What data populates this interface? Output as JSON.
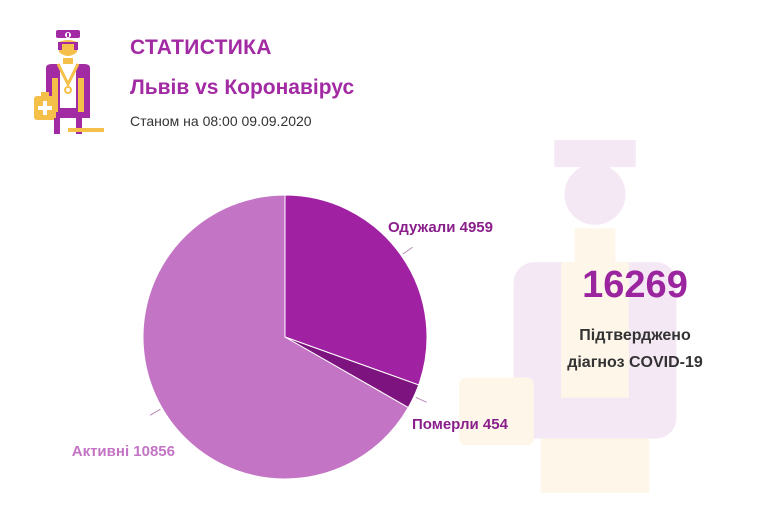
{
  "header": {
    "title": "СТАТИСТИКА",
    "subtitle": "Львів vs Коронавірус",
    "date": "Станом на 08:00 09.09.2020"
  },
  "summary": {
    "total": "16269",
    "caption_line1": "Підтверджено",
    "caption_line2": "діагноз COVID-19"
  },
  "icons": {
    "logo": "doctor-icon",
    "background": "doctor-watermark-icon"
  },
  "colors": {
    "accent": "#a22aa3",
    "recovered": "#a121a3",
    "deaths": "#7d137f",
    "active": "#c374c4"
  },
  "chart_data": {
    "type": "pie",
    "slices": [
      {
        "label": "Одужали 4959",
        "category": "Одужали",
        "value": 4959,
        "color": "#a121a3"
      },
      {
        "label": "Померли 454",
        "category": "Померли",
        "value": 454,
        "color": "#7d137f"
      },
      {
        "label": "Активні 10856",
        "category": "Активні",
        "value": 10856,
        "color": "#c374c4"
      }
    ],
    "start_angle": "12 o'clock, clockwise"
  }
}
